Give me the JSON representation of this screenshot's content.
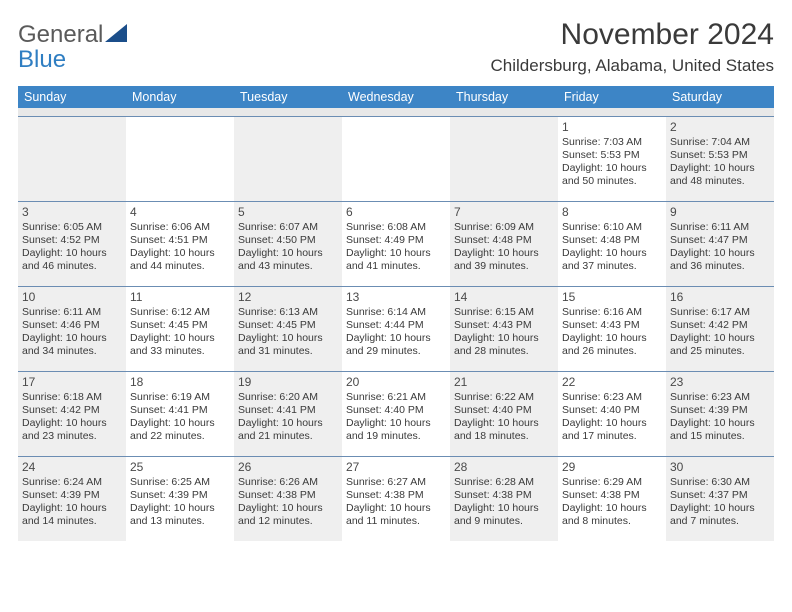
{
  "brand": {
    "word1": "General",
    "word2": "Blue",
    "icon_color": "#1b4e8a"
  },
  "title": "November 2024",
  "location": "Childersburg, Alabama, United States",
  "colors": {
    "header_bg": "#3d85c6",
    "header_fg": "#ffffff",
    "row_border": "#6b8db3",
    "shaded_bg": "#efefef",
    "spacer_bg": "#e8e8e8",
    "text": "#3a3a3a"
  },
  "weekdays": [
    "Sunday",
    "Monday",
    "Tuesday",
    "Wednesday",
    "Thursday",
    "Friday",
    "Saturday"
  ],
  "weeks": [
    [
      {
        "shaded": true
      },
      {
        "shaded": false
      },
      {
        "shaded": true
      },
      {
        "shaded": false
      },
      {
        "shaded": true
      },
      {
        "num": "1",
        "shaded": false,
        "sunrise": "Sunrise: 7:03 AM",
        "sunset": "Sunset: 5:53 PM",
        "day1": "Daylight: 10 hours",
        "day2": "and 50 minutes."
      },
      {
        "num": "2",
        "shaded": true,
        "sunrise": "Sunrise: 7:04 AM",
        "sunset": "Sunset: 5:53 PM",
        "day1": "Daylight: 10 hours",
        "day2": "and 48 minutes."
      }
    ],
    [
      {
        "num": "3",
        "shaded": true,
        "sunrise": "Sunrise: 6:05 AM",
        "sunset": "Sunset: 4:52 PM",
        "day1": "Daylight: 10 hours",
        "day2": "and 46 minutes."
      },
      {
        "num": "4",
        "shaded": false,
        "sunrise": "Sunrise: 6:06 AM",
        "sunset": "Sunset: 4:51 PM",
        "day1": "Daylight: 10 hours",
        "day2": "and 44 minutes."
      },
      {
        "num": "5",
        "shaded": true,
        "sunrise": "Sunrise: 6:07 AM",
        "sunset": "Sunset: 4:50 PM",
        "day1": "Daylight: 10 hours",
        "day2": "and 43 minutes."
      },
      {
        "num": "6",
        "shaded": false,
        "sunrise": "Sunrise: 6:08 AM",
        "sunset": "Sunset: 4:49 PM",
        "day1": "Daylight: 10 hours",
        "day2": "and 41 minutes."
      },
      {
        "num": "7",
        "shaded": true,
        "sunrise": "Sunrise: 6:09 AM",
        "sunset": "Sunset: 4:48 PM",
        "day1": "Daylight: 10 hours",
        "day2": "and 39 minutes."
      },
      {
        "num": "8",
        "shaded": false,
        "sunrise": "Sunrise: 6:10 AM",
        "sunset": "Sunset: 4:48 PM",
        "day1": "Daylight: 10 hours",
        "day2": "and 37 minutes."
      },
      {
        "num": "9",
        "shaded": true,
        "sunrise": "Sunrise: 6:11 AM",
        "sunset": "Sunset: 4:47 PM",
        "day1": "Daylight: 10 hours",
        "day2": "and 36 minutes."
      }
    ],
    [
      {
        "num": "10",
        "shaded": true,
        "sunrise": "Sunrise: 6:11 AM",
        "sunset": "Sunset: 4:46 PM",
        "day1": "Daylight: 10 hours",
        "day2": "and 34 minutes."
      },
      {
        "num": "11",
        "shaded": false,
        "sunrise": "Sunrise: 6:12 AM",
        "sunset": "Sunset: 4:45 PM",
        "day1": "Daylight: 10 hours",
        "day2": "and 33 minutes."
      },
      {
        "num": "12",
        "shaded": true,
        "sunrise": "Sunrise: 6:13 AM",
        "sunset": "Sunset: 4:45 PM",
        "day1": "Daylight: 10 hours",
        "day2": "and 31 minutes."
      },
      {
        "num": "13",
        "shaded": false,
        "sunrise": "Sunrise: 6:14 AM",
        "sunset": "Sunset: 4:44 PM",
        "day1": "Daylight: 10 hours",
        "day2": "and 29 minutes."
      },
      {
        "num": "14",
        "shaded": true,
        "sunrise": "Sunrise: 6:15 AM",
        "sunset": "Sunset: 4:43 PM",
        "day1": "Daylight: 10 hours",
        "day2": "and 28 minutes."
      },
      {
        "num": "15",
        "shaded": false,
        "sunrise": "Sunrise: 6:16 AM",
        "sunset": "Sunset: 4:43 PM",
        "day1": "Daylight: 10 hours",
        "day2": "and 26 minutes."
      },
      {
        "num": "16",
        "shaded": true,
        "sunrise": "Sunrise: 6:17 AM",
        "sunset": "Sunset: 4:42 PM",
        "day1": "Daylight: 10 hours",
        "day2": "and 25 minutes."
      }
    ],
    [
      {
        "num": "17",
        "shaded": true,
        "sunrise": "Sunrise: 6:18 AM",
        "sunset": "Sunset: 4:42 PM",
        "day1": "Daylight: 10 hours",
        "day2": "and 23 minutes."
      },
      {
        "num": "18",
        "shaded": false,
        "sunrise": "Sunrise: 6:19 AM",
        "sunset": "Sunset: 4:41 PM",
        "day1": "Daylight: 10 hours",
        "day2": "and 22 minutes."
      },
      {
        "num": "19",
        "shaded": true,
        "sunrise": "Sunrise: 6:20 AM",
        "sunset": "Sunset: 4:41 PM",
        "day1": "Daylight: 10 hours",
        "day2": "and 21 minutes."
      },
      {
        "num": "20",
        "shaded": false,
        "sunrise": "Sunrise: 6:21 AM",
        "sunset": "Sunset: 4:40 PM",
        "day1": "Daylight: 10 hours",
        "day2": "and 19 minutes."
      },
      {
        "num": "21",
        "shaded": true,
        "sunrise": "Sunrise: 6:22 AM",
        "sunset": "Sunset: 4:40 PM",
        "day1": "Daylight: 10 hours",
        "day2": "and 18 minutes."
      },
      {
        "num": "22",
        "shaded": false,
        "sunrise": "Sunrise: 6:23 AM",
        "sunset": "Sunset: 4:40 PM",
        "day1": "Daylight: 10 hours",
        "day2": "and 17 minutes."
      },
      {
        "num": "23",
        "shaded": true,
        "sunrise": "Sunrise: 6:23 AM",
        "sunset": "Sunset: 4:39 PM",
        "day1": "Daylight: 10 hours",
        "day2": "and 15 minutes."
      }
    ],
    [
      {
        "num": "24",
        "shaded": true,
        "sunrise": "Sunrise: 6:24 AM",
        "sunset": "Sunset: 4:39 PM",
        "day1": "Daylight: 10 hours",
        "day2": "and 14 minutes."
      },
      {
        "num": "25",
        "shaded": false,
        "sunrise": "Sunrise: 6:25 AM",
        "sunset": "Sunset: 4:39 PM",
        "day1": "Daylight: 10 hours",
        "day2": "and 13 minutes."
      },
      {
        "num": "26",
        "shaded": true,
        "sunrise": "Sunrise: 6:26 AM",
        "sunset": "Sunset: 4:38 PM",
        "day1": "Daylight: 10 hours",
        "day2": "and 12 minutes."
      },
      {
        "num": "27",
        "shaded": false,
        "sunrise": "Sunrise: 6:27 AM",
        "sunset": "Sunset: 4:38 PM",
        "day1": "Daylight: 10 hours",
        "day2": "and 11 minutes."
      },
      {
        "num": "28",
        "shaded": true,
        "sunrise": "Sunrise: 6:28 AM",
        "sunset": "Sunset: 4:38 PM",
        "day1": "Daylight: 10 hours",
        "day2": "and 9 minutes."
      },
      {
        "num": "29",
        "shaded": false,
        "sunrise": "Sunrise: 6:29 AM",
        "sunset": "Sunset: 4:38 PM",
        "day1": "Daylight: 10 hours",
        "day2": "and 8 minutes."
      },
      {
        "num": "30",
        "shaded": true,
        "sunrise": "Sunrise: 6:30 AM",
        "sunset": "Sunset: 4:37 PM",
        "day1": "Daylight: 10 hours",
        "day2": "and 7 minutes."
      }
    ]
  ]
}
